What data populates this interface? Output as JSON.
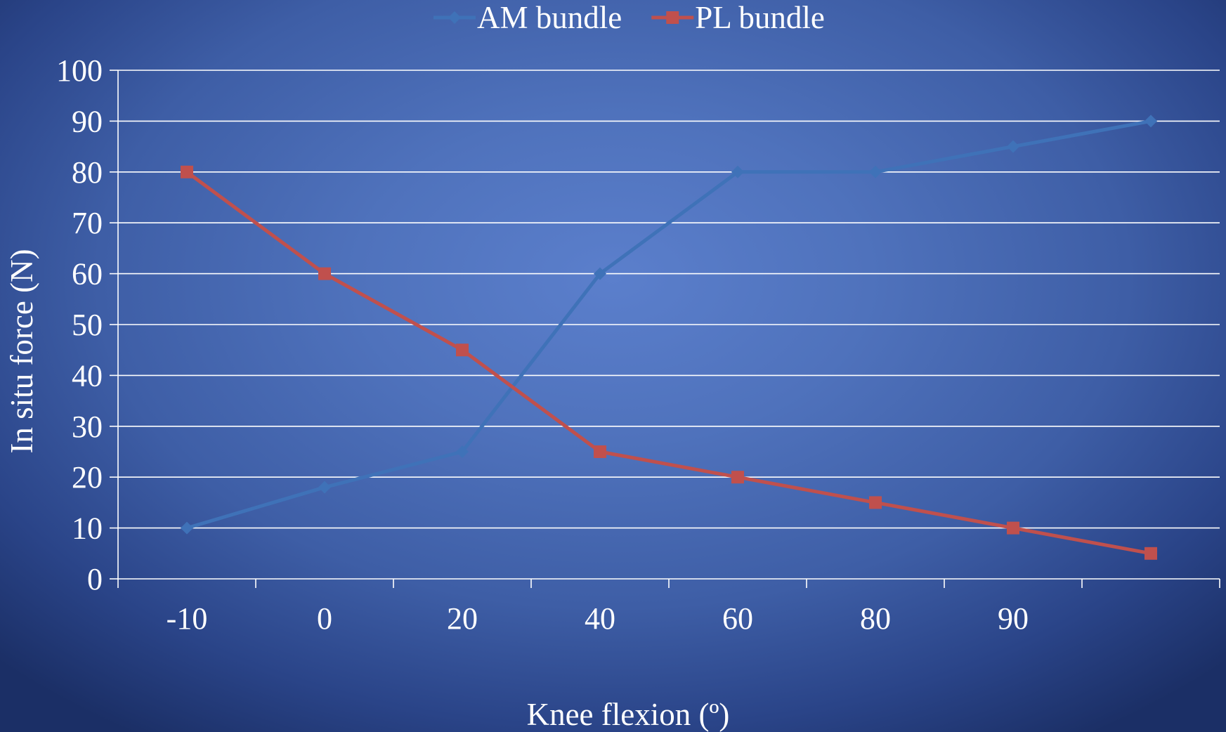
{
  "chart_data": {
    "type": "line",
    "categories": [
      "-10",
      "0",
      "20",
      "40",
      "60",
      "80",
      "90",
      ""
    ],
    "series": [
      {
        "name": "AM bundle",
        "values": [
          10,
          18,
          25,
          60,
          80,
          80,
          85,
          90
        ],
        "color": "#3f72b8",
        "marker": "diamond"
      },
      {
        "name": "PL bundle",
        "values": [
          80,
          60,
          45,
          25,
          20,
          15,
          10,
          5
        ],
        "color": "#c0504d",
        "marker": "square"
      }
    ],
    "xlabel": "Knee flexion (º)",
    "ylabel": "In situ force (N)",
    "ylim": [
      0,
      100
    ],
    "yticks": [
      0,
      10,
      20,
      30,
      40,
      50,
      60,
      70,
      80,
      90,
      100
    ],
    "grid": true,
    "legend_position": "top"
  }
}
